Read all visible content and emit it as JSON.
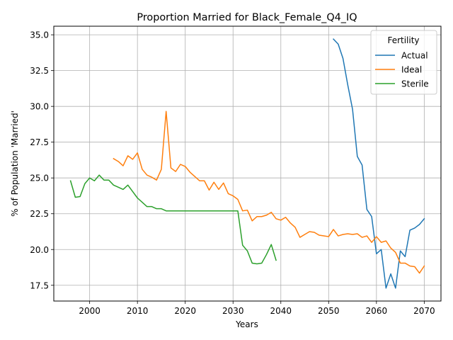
{
  "chart_data": {
    "type": "line",
    "title": "Proportion Married for Black_Female_Q4_IQ",
    "xlabel": "Years",
    "ylabel": "% of Population 'Married'",
    "xlim": [
      1992.5,
      2073.5
    ],
    "ylim": [
      16.4,
      35.6
    ],
    "xticks": [
      2000,
      2010,
      2020,
      2030,
      2040,
      2050,
      2060,
      2070
    ],
    "xtick_labels": [
      "2000",
      "2010",
      "2020",
      "2030",
      "2040",
      "2050",
      "2060",
      "2070"
    ],
    "yticks": [
      17.5,
      20.0,
      22.5,
      25.0,
      27.5,
      30.0,
      32.5,
      35.0
    ],
    "ytick_labels": [
      "17.5",
      "20.0",
      "22.5",
      "25.0",
      "27.5",
      "30.0",
      "32.5",
      "35.0"
    ],
    "grid": true,
    "legend": {
      "title": "Fertility",
      "placement": "top-right"
    },
    "series": [
      {
        "name": "Actual",
        "color": "#1f77b4",
        "x": [
          2051,
          2052,
          2053,
          2054,
          2055,
          2056,
          2057,
          2058,
          2059,
          2060,
          2061,
          2062,
          2063,
          2064,
          2065,
          2066,
          2067,
          2068,
          2069,
          2070
        ],
        "values": [
          34.7,
          34.35,
          33.35,
          31.5,
          29.8,
          26.5,
          25.9,
          22.8,
          22.3,
          19.7,
          20.0,
          17.3,
          18.3,
          17.3,
          19.9,
          19.5,
          21.35,
          21.5,
          21.75,
          22.15
        ]
      },
      {
        "name": "Ideal",
        "color": "#ff7f0e",
        "x": [
          2005,
          2006,
          2007,
          2008,
          2009,
          2010,
          2011,
          2012,
          2013,
          2014,
          2015,
          2016,
          2017,
          2018,
          2019,
          2020,
          2021,
          2022,
          2023,
          2024,
          2025,
          2026,
          2027,
          2028,
          2029,
          2030,
          2031,
          2032,
          2033,
          2034,
          2035,
          2036,
          2037,
          2038,
          2039,
          2040,
          2041,
          2042,
          2043,
          2044,
          2045,
          2046,
          2047,
          2048,
          2049,
          2050,
          2051,
          2052,
          2053,
          2054,
          2055,
          2056,
          2057,
          2058,
          2059,
          2060,
          2061,
          2062,
          2063,
          2064,
          2065,
          2066,
          2067,
          2068,
          2069,
          2070
        ],
        "values": [
          26.35,
          26.15,
          25.85,
          26.55,
          26.3,
          26.75,
          25.6,
          25.2,
          25.05,
          24.85,
          25.6,
          29.65,
          25.7,
          25.45,
          25.95,
          25.8,
          25.4,
          25.1,
          24.8,
          24.8,
          24.15,
          24.7,
          24.2,
          24.65,
          23.9,
          23.75,
          23.5,
          22.7,
          22.75,
          22.0,
          22.3,
          22.3,
          22.4,
          22.6,
          22.15,
          22.05,
          22.25,
          21.85,
          21.55,
          20.85,
          21.05,
          21.25,
          21.2,
          21.0,
          20.95,
          20.9,
          21.4,
          20.95,
          21.05,
          21.1,
          21.05,
          21.1,
          20.85,
          20.95,
          20.5,
          20.9,
          20.5,
          20.6,
          20.1,
          19.8,
          19.05,
          19.05,
          18.85,
          18.8,
          18.35,
          18.85
        ]
      },
      {
        "name": "Sterile",
        "color": "#2ca02c",
        "x": [
          1996,
          1997,
          1998,
          1999,
          2000,
          2001,
          2002,
          2003,
          2004,
          2005,
          2006,
          2007,
          2008,
          2009,
          2010,
          2011,
          2012,
          2013,
          2014,
          2015,
          2016,
          2017,
          2018,
          2019,
          2020,
          2021,
          2022,
          2023,
          2024,
          2025,
          2026,
          2027,
          2028,
          2029,
          2030,
          2031,
          2032,
          2033,
          2034,
          2035,
          2036,
          2037,
          2038,
          2039
        ],
        "values": [
          24.8,
          23.65,
          23.7,
          24.6,
          25.0,
          24.8,
          25.2,
          24.85,
          24.85,
          24.5,
          24.35,
          24.2,
          24.5,
          24.05,
          23.6,
          23.3,
          23.0,
          23.0,
          22.85,
          22.85,
          22.7,
          22.7,
          22.7,
          22.7,
          22.7,
          22.7,
          22.7,
          22.7,
          22.7,
          22.7,
          22.7,
          22.7,
          22.7,
          22.7,
          22.7,
          22.7,
          20.3,
          19.9,
          19.05,
          19.0,
          19.05,
          19.65,
          20.35,
          19.25
        ]
      }
    ]
  }
}
